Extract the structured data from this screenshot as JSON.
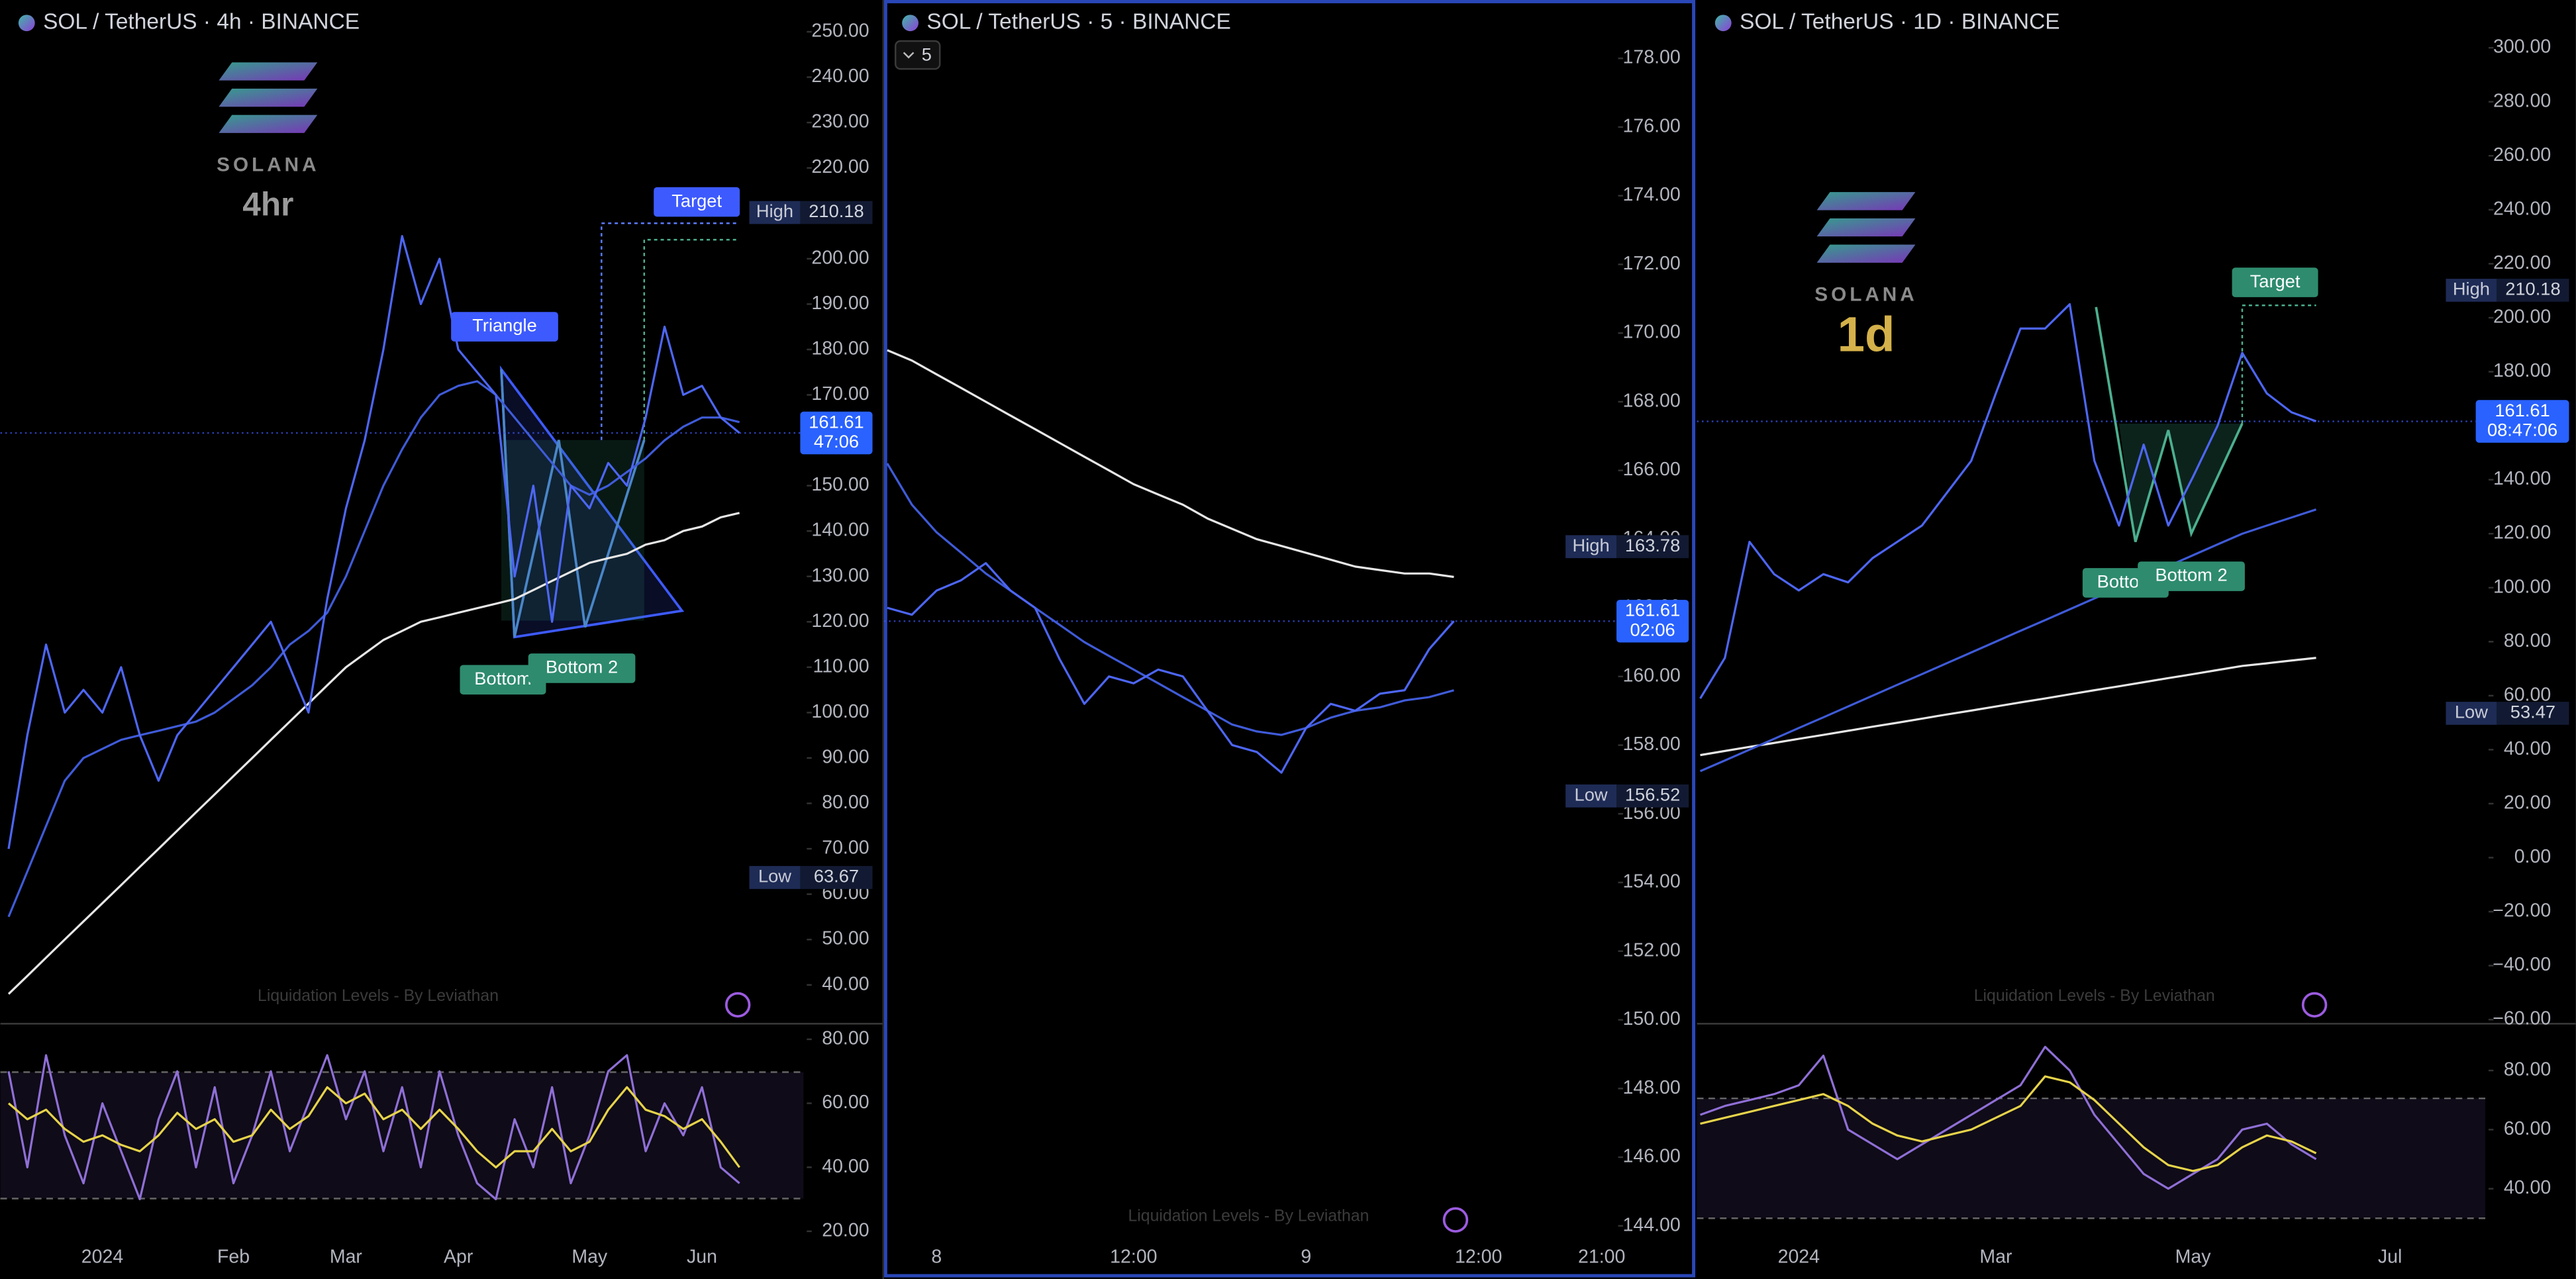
{
  "chart_data": [
    {
      "type": "line",
      "title": "SOL / TetherUS · 4h · BINANCE",
      "brand": "SOLANA",
      "timeframe": "4hr",
      "indicator": "Liquidation Levels - By Leviathan",
      "categories": [
        null,
        null,
        null,
        null,
        null,
        "2024",
        null,
        null,
        null,
        null,
        null,
        null,
        "Feb",
        null,
        null,
        null,
        null,
        null,
        "Mar",
        null,
        null,
        null,
        null,
        null,
        "Apr",
        null,
        null,
        null,
        null,
        null,
        null,
        "May",
        null,
        null,
        null,
        null,
        null,
        "Jun",
        null,
        null
      ],
      "ylim": [
        32,
        257
      ],
      "yticks": [
        {
          "value": 40,
          "label": "40.00"
        },
        {
          "value": 50,
          "label": "50.00"
        },
        {
          "value": 60,
          "label": "60.00"
        },
        {
          "value": 70,
          "label": "70.00"
        },
        {
          "value": 80,
          "label": "80.00"
        },
        {
          "value": 90,
          "label": "90.00"
        },
        {
          "value": 100,
          "label": "100.00"
        },
        {
          "value": 110,
          "label": "110.00"
        },
        {
          "value": 120,
          "label": "120.00"
        },
        {
          "value": 130,
          "label": "130.00"
        },
        {
          "value": 140,
          "label": "140.00"
        },
        {
          "value": 150,
          "label": "150.00"
        },
        {
          "value": 160,
          "label": "160.00"
        },
        {
          "value": 170,
          "label": "170.00"
        },
        {
          "value": 180,
          "label": "180.00"
        },
        {
          "value": 190,
          "label": "190.00"
        },
        {
          "value": 200,
          "label": "200.00"
        },
        {
          "value": 210,
          "label": "210.00"
        },
        {
          "value": 220,
          "label": "220.00"
        },
        {
          "value": 230,
          "label": "230.00"
        },
        {
          "value": 240,
          "label": "240.00"
        },
        {
          "value": 250,
          "label": "250.00"
        }
      ],
      "y2lim": [
        17.4,
        84.1
      ],
      "y2ticks": [
        {
          "value": 20,
          "label": "20.00"
        },
        {
          "value": 40,
          "label": "40.00"
        },
        {
          "value": 60,
          "label": "60.00"
        },
        {
          "value": 80,
          "label": "80.00"
        }
      ],
      "series": [
        {
          "color": "#e6e6e6",
          "values": [
            38,
            42,
            46,
            50,
            54,
            58,
            62,
            66,
            70,
            74,
            78,
            82,
            86,
            90,
            94,
            98,
            102,
            106,
            110,
            113,
            116,
            118,
            120,
            121,
            122,
            123,
            124,
            125,
            127,
            129,
            131,
            133,
            134,
            135,
            137,
            138,
            140,
            141,
            143,
            144
          ]
        },
        {
          "color": "#3f5bd8",
          "values": [
            55,
            65,
            75,
            85,
            90,
            92,
            94,
            95,
            96,
            97,
            98,
            100,
            103,
            106,
            110,
            115,
            118,
            122,
            130,
            140,
            150,
            158,
            165,
            170,
            172,
            173,
            170,
            165,
            160,
            155,
            150,
            148,
            150,
            153,
            156,
            160,
            163,
            165,
            165,
            164
          ]
        },
        {
          "color": "#4d66f5",
          "values": [
            70,
            95,
            115,
            100,
            105,
            100,
            110,
            95,
            85,
            95,
            100,
            105,
            110,
            115,
            120,
            110,
            100,
            125,
            145,
            160,
            180,
            205,
            190,
            200,
            180,
            175,
            170,
            130,
            150,
            120,
            150,
            145,
            155,
            150,
            165,
            185,
            170,
            172,
            165,
            161.61
          ]
        },
        {
          "color": "#8f6fd6",
          "axis": "y2",
          "values": [
            70,
            40,
            75,
            50,
            35,
            60,
            45,
            30,
            55,
            70,
            40,
            65,
            35,
            50,
            70,
            45,
            60,
            75,
            55,
            70,
            45,
            65,
            40,
            70,
            50,
            35,
            30,
            55,
            40,
            65,
            35,
            50,
            70,
            75,
            45,
            60,
            50,
            65,
            40,
            35
          ]
        },
        {
          "color": "#e6d34a",
          "axis": "y2",
          "values": [
            60,
            55,
            58,
            52,
            48,
            50,
            47,
            45,
            50,
            57,
            52,
            55,
            48,
            50,
            58,
            52,
            56,
            65,
            60,
            63,
            55,
            58,
            52,
            58,
            52,
            45,
            40,
            45,
            45,
            52,
            45,
            48,
            58,
            65,
            58,
            56,
            52,
            55,
            48,
            40
          ]
        }
      ],
      "high": {
        "label": "High",
        "value": 210.18
      },
      "low": {
        "label": "Low",
        "value": 63.67
      },
      "last": {
        "value": 161.61,
        "countdown": "47:06"
      },
      "annotations": [
        {
          "text": "Triangle",
          "color": "#3d5afe"
        },
        {
          "text": "Target",
          "color": "#3d5afe"
        },
        {
          "text": "Bottom",
          "color": "#2e8b6e"
        },
        {
          "text": "Bottom 2",
          "color": "#2e8b6e"
        }
      ]
    },
    {
      "type": "line",
      "title": "SOL / TetherUS · 5 · BINANCE",
      "interval": "5",
      "indicator": "Liquidation Levels - By Leviathan",
      "categories": [
        null,
        null,
        "8",
        null,
        null,
        null,
        null,
        null,
        null,
        null,
        "12:00",
        null,
        null,
        null,
        null,
        null,
        null,
        "9",
        null,
        null,
        null,
        null,
        null,
        null,
        "12:00",
        null,
        null,
        null,
        null,
        "21:00"
      ],
      "ylim": [
        143.6,
        179.7
      ],
      "yticks": [
        {
          "value": 144,
          "label": "144.00"
        },
        {
          "value": 146,
          "label": "146.00"
        },
        {
          "value": 148,
          "label": "148.00"
        },
        {
          "value": 150,
          "label": "150.00"
        },
        {
          "value": 152,
          "label": "152.00"
        },
        {
          "value": 154,
          "label": "154.00"
        },
        {
          "value": 156,
          "label": "156.00"
        },
        {
          "value": 158,
          "label": "158.00"
        },
        {
          "value": 160,
          "label": "160.00"
        },
        {
          "value": 162,
          "label": "162.00"
        },
        {
          "value": 164,
          "label": "164.00"
        },
        {
          "value": 166,
          "label": "166.00"
        },
        {
          "value": 168,
          "label": "168.00"
        },
        {
          "value": 170,
          "label": "170.00"
        },
        {
          "value": 172,
          "label": "172.00"
        },
        {
          "value": 174,
          "label": "174.00"
        },
        {
          "value": 176,
          "label": "176.00"
        },
        {
          "value": 178,
          "label": "178.00"
        }
      ],
      "series": [
        {
          "color": "#e6e6e6",
          "values": [
            169.5,
            169.2,
            168.8,
            168.4,
            168,
            167.6,
            167.2,
            166.8,
            166.4,
            166,
            165.6,
            165.3,
            165,
            164.6,
            164.3,
            164,
            163.8,
            163.6,
            163.4,
            163.2,
            163.1,
            163,
            163,
            162.9,
            null,
            null,
            null,
            null,
            null,
            null
          ]
        },
        {
          "color": "#3f5bd8",
          "values": [
            166.2,
            165,
            164.2,
            163.6,
            163,
            162.5,
            162,
            161.5,
            161,
            160.6,
            160.2,
            159.8,
            159.4,
            159,
            158.6,
            158.4,
            158.3,
            158.5,
            158.8,
            159,
            159.1,
            159.3,
            159.4,
            159.6,
            null,
            null,
            null,
            null,
            null,
            null
          ]
        },
        {
          "color": "#4d66f5",
          "values": [
            162,
            161.8,
            162.5,
            162.8,
            163.3,
            162.5,
            162,
            160.5,
            159.2,
            160,
            159.8,
            160.2,
            160,
            159,
            158,
            157.8,
            157.2,
            158.5,
            159.2,
            159,
            159.5,
            159.6,
            160.8,
            161.61,
            null,
            null,
            null,
            null,
            null,
            null
          ]
        }
      ],
      "high": {
        "label": "High",
        "value": 163.78
      },
      "low": {
        "label": "Low",
        "value": 156.52
      },
      "last": {
        "value": 161.61,
        "countdown": "02:06"
      },
      "annotations": []
    },
    {
      "type": "line",
      "title": "SOL / TetherUS · 1D · BINANCE",
      "brand": "SOLANA",
      "timeframe": "1d",
      "indicator": "Liquidation Levels - By Leviathan",
      "categories": [
        null,
        null,
        null,
        null,
        "2024",
        null,
        null,
        null,
        null,
        null,
        null,
        null,
        "Mar",
        null,
        null,
        null,
        null,
        null,
        null,
        null,
        "May",
        null,
        null,
        null,
        null,
        null,
        null,
        null,
        "Jul",
        null
      ],
      "ylim": [
        -60.6,
        317.7
      ],
      "yticks": [
        {
          "value": -60,
          "label": "−60.00"
        },
        {
          "value": -40,
          "label": "−40.00"
        },
        {
          "value": -20,
          "label": "−20.00"
        },
        {
          "value": 0,
          "label": "0.00"
        },
        {
          "value": 20,
          "label": "20.00"
        },
        {
          "value": 40,
          "label": "40.00"
        },
        {
          "value": 60,
          "label": "60.00"
        },
        {
          "value": 80,
          "label": "80.00"
        },
        {
          "value": 100,
          "label": "100.00"
        },
        {
          "value": 120,
          "label": "120.00"
        },
        {
          "value": 140,
          "label": "140.00"
        },
        {
          "value": 160,
          "label": "160.00"
        },
        {
          "value": 180,
          "label": "180.00"
        },
        {
          "value": 200,
          "label": "200.00"
        },
        {
          "value": 220,
          "label": "220.00"
        },
        {
          "value": 240,
          "label": "240.00"
        },
        {
          "value": 260,
          "label": "260.00"
        },
        {
          "value": 280,
          "label": "280.00"
        },
        {
          "value": 300,
          "label": "300.00"
        }
      ],
      "y2lim": [
        22.8,
        95
      ],
      "y2ticks": [
        {
          "value": 40,
          "label": "40.00"
        },
        {
          "value": 60,
          "label": "60.00"
        },
        {
          "value": 80,
          "label": "80.00"
        }
      ],
      "series": [
        {
          "color": "#e6e6e6",
          "values": [
            38,
            39.5,
            41,
            42.5,
            44,
            45.5,
            47,
            48.5,
            50,
            51.5,
            53,
            54.5,
            56,
            57.5,
            59,
            60.5,
            62,
            63.5,
            65,
            66.5,
            68,
            69.5,
            71,
            72,
            73,
            74,
            null,
            null,
            null,
            null
          ]
        },
        {
          "color": "#3f5bd8",
          "values": [
            32,
            36,
            40,
            44,
            48,
            52,
            56,
            60,
            64,
            68,
            72,
            76,
            80,
            84,
            88,
            92,
            96,
            100,
            104,
            108,
            112,
            116,
            120,
            123,
            126,
            129,
            null,
            null,
            null,
            null
          ]
        },
        {
          "color": "#4d66f5",
          "values": [
            59,
            74,
            117,
            105,
            99,
            105,
            102,
            111,
            117,
            123,
            135,
            147,
            172,
            196,
            196,
            205,
            147,
            123,
            153,
            123,
            141,
            160,
            187,
            172,
            165,
            161.61,
            null,
            null,
            null,
            null
          ]
        },
        {
          "color": "#8f6fd6",
          "axis": "y2",
          "values": [
            65,
            68,
            70,
            72,
            75,
            85,
            60,
            55,
            50,
            55,
            60,
            65,
            70,
            75,
            88,
            80,
            65,
            55,
            45,
            40,
            45,
            50,
            60,
            62,
            55,
            50,
            null,
            null,
            null,
            null
          ]
        },
        {
          "color": "#e6d34a",
          "axis": "y2",
          "values": [
            62,
            64,
            66,
            68,
            70,
            72,
            68,
            62,
            58,
            56,
            58,
            60,
            64,
            68,
            78,
            76,
            70,
            62,
            54,
            48,
            46,
            48,
            54,
            58,
            56,
            52,
            null,
            null,
            null,
            null
          ]
        }
      ],
      "high": {
        "label": "High",
        "value": 210.18
      },
      "low": {
        "label": "Low",
        "value": 53.47
      },
      "last": {
        "value": 161.61,
        "countdown": "08:47:06"
      },
      "annotations": [
        {
          "text": "Target",
          "color": "#2e8b6e"
        },
        {
          "text": "Bottom",
          "color": "#2e8b6e"
        },
        {
          "text": "Bottom 2",
          "color": "#2e8b6e"
        }
      ]
    }
  ]
}
